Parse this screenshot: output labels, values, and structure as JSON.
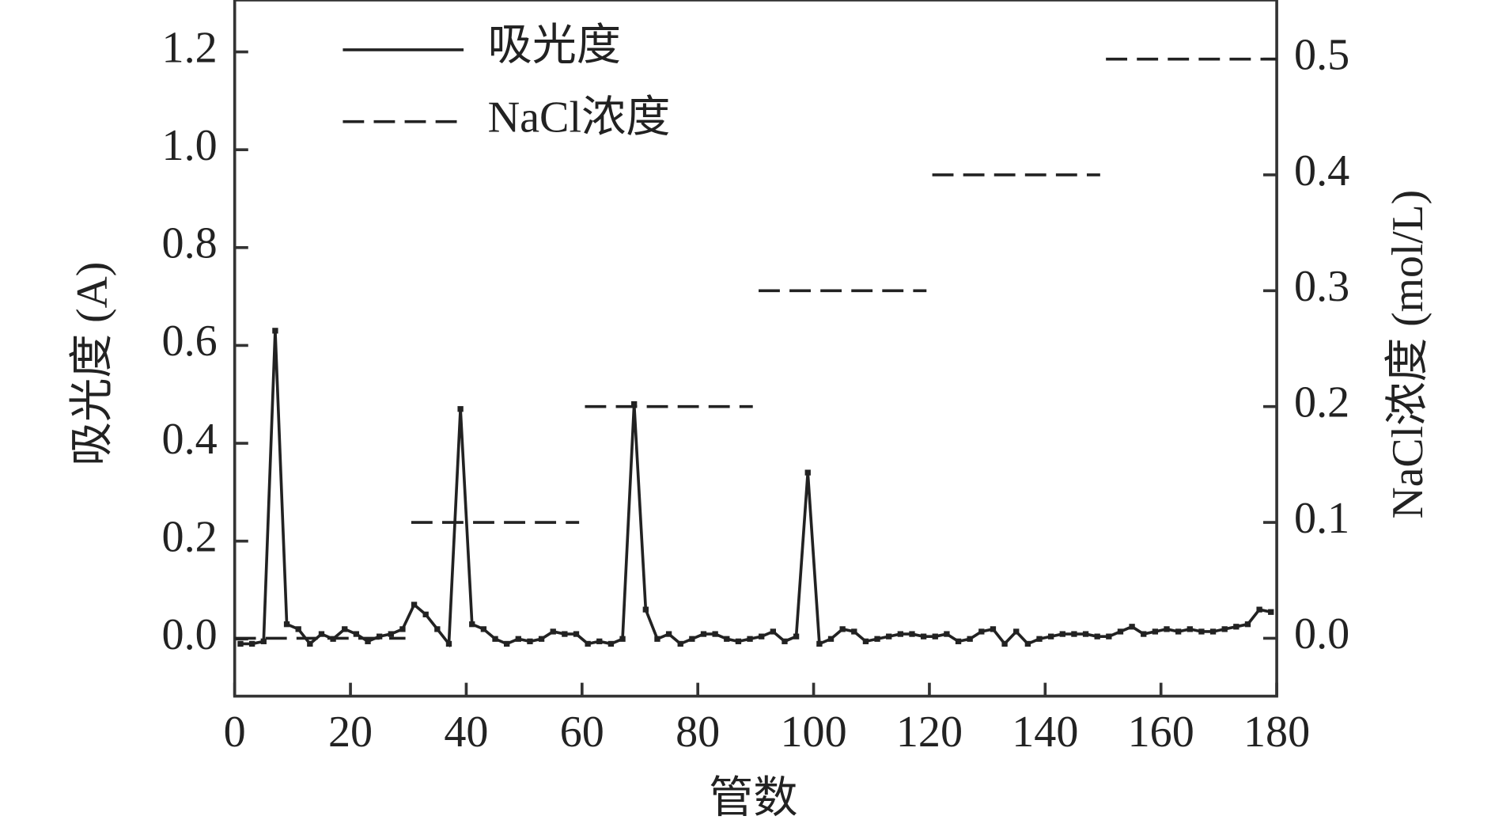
{
  "chart_data": {
    "type": "line",
    "xlabel": "管数",
    "ylabel": "吸光度 (A)",
    "y2label": "NaCl浓度 (mol/L)",
    "xlim": [
      0,
      180
    ],
    "xticks": [
      0,
      20,
      40,
      60,
      80,
      100,
      120,
      140,
      160,
      180
    ],
    "ylim": [
      -0.117,
      1.306
    ],
    "yticks": [
      {
        "value": 0,
        "label": "0.0"
      },
      0.2,
      0.4,
      0.6,
      0.8,
      {
        "value": 1,
        "label": "1.0"
      },
      1.2
    ],
    "y2lim": [
      -0.05,
      0.551
    ],
    "y2ticks": [
      {
        "value": 0,
        "label": "0.0"
      },
      0.1,
      0.2,
      0.3,
      0.4,
      0.5
    ],
    "legend": "upper left",
    "series": [
      {
        "name": "吸光度",
        "color": "#222222",
        "style": "solid",
        "marker": "square",
        "x": [
          1,
          3,
          5,
          7,
          9,
          11,
          13,
          15,
          17,
          19,
          21,
          23,
          25,
          27,
          29,
          31,
          33,
          35,
          37,
          39,
          41,
          43,
          45,
          47,
          49,
          51,
          53,
          55,
          57,
          59,
          61,
          63,
          65,
          67,
          69,
          71,
          73,
          75,
          77,
          79,
          81,
          83,
          85,
          87,
          89,
          91,
          93,
          95,
          97,
          99,
          101,
          103,
          105,
          107,
          109,
          111,
          113,
          115,
          117,
          119,
          121,
          123,
          125,
          127,
          129,
          131,
          133,
          135,
          137,
          139,
          141,
          143,
          145,
          147,
          149,
          151,
          153,
          155,
          157,
          159,
          161,
          163,
          165,
          167,
          169,
          171,
          173,
          175,
          177,
          179
        ],
        "values": [
          -0.01,
          -0.01,
          -0.005,
          0.63,
          0.03,
          0.02,
          -0.01,
          0.01,
          0,
          0.02,
          0.01,
          -0.005,
          0.005,
          0.01,
          0.02,
          0.07,
          0.05,
          0.02,
          -0.01,
          0.47,
          0.03,
          0.02,
          0,
          -0.01,
          0,
          -0.005,
          0,
          0.015,
          0.01,
          0.01,
          -0.01,
          -0.005,
          -0.01,
          0,
          0.48,
          0.06,
          0,
          0.01,
          -0.01,
          0,
          0.01,
          0.01,
          0,
          -0.005,
          0,
          0.005,
          0.015,
          -0.005,
          0.005,
          0.34,
          -0.01,
          0,
          0.02,
          0.015,
          -0.005,
          0,
          0.005,
          0.01,
          0.01,
          0.005,
          0.005,
          0.01,
          -0.005,
          0,
          0.015,
          0.02,
          -0.01,
          0.015,
          -0.01,
          0,
          0.005,
          0.01,
          0.01,
          0.01,
          0.005,
          0.005,
          0.015,
          0.025,
          0.01,
          0.015,
          0.02,
          0.015,
          0.02,
          0.015,
          0.015,
          0.02,
          0.025,
          0.03,
          0.06,
          0.055
        ]
      },
      {
        "name": "NaCl浓度",
        "color": "#222222",
        "style": "dashed",
        "axis": "y2",
        "x": [
          0,
          29.5,
          30,
          30.5,
          59.5,
          60,
          60.5,
          89.5,
          90,
          90.5,
          119.5,
          120,
          120.5,
          149.5,
          150,
          150.5,
          180
        ],
        "values": [
          0,
          0,
          null,
          0.1,
          0.1,
          null,
          0.2,
          0.2,
          null,
          0.3,
          0.3,
          null,
          0.4,
          0.4,
          null,
          0.5,
          0.5
        ]
      }
    ]
  }
}
